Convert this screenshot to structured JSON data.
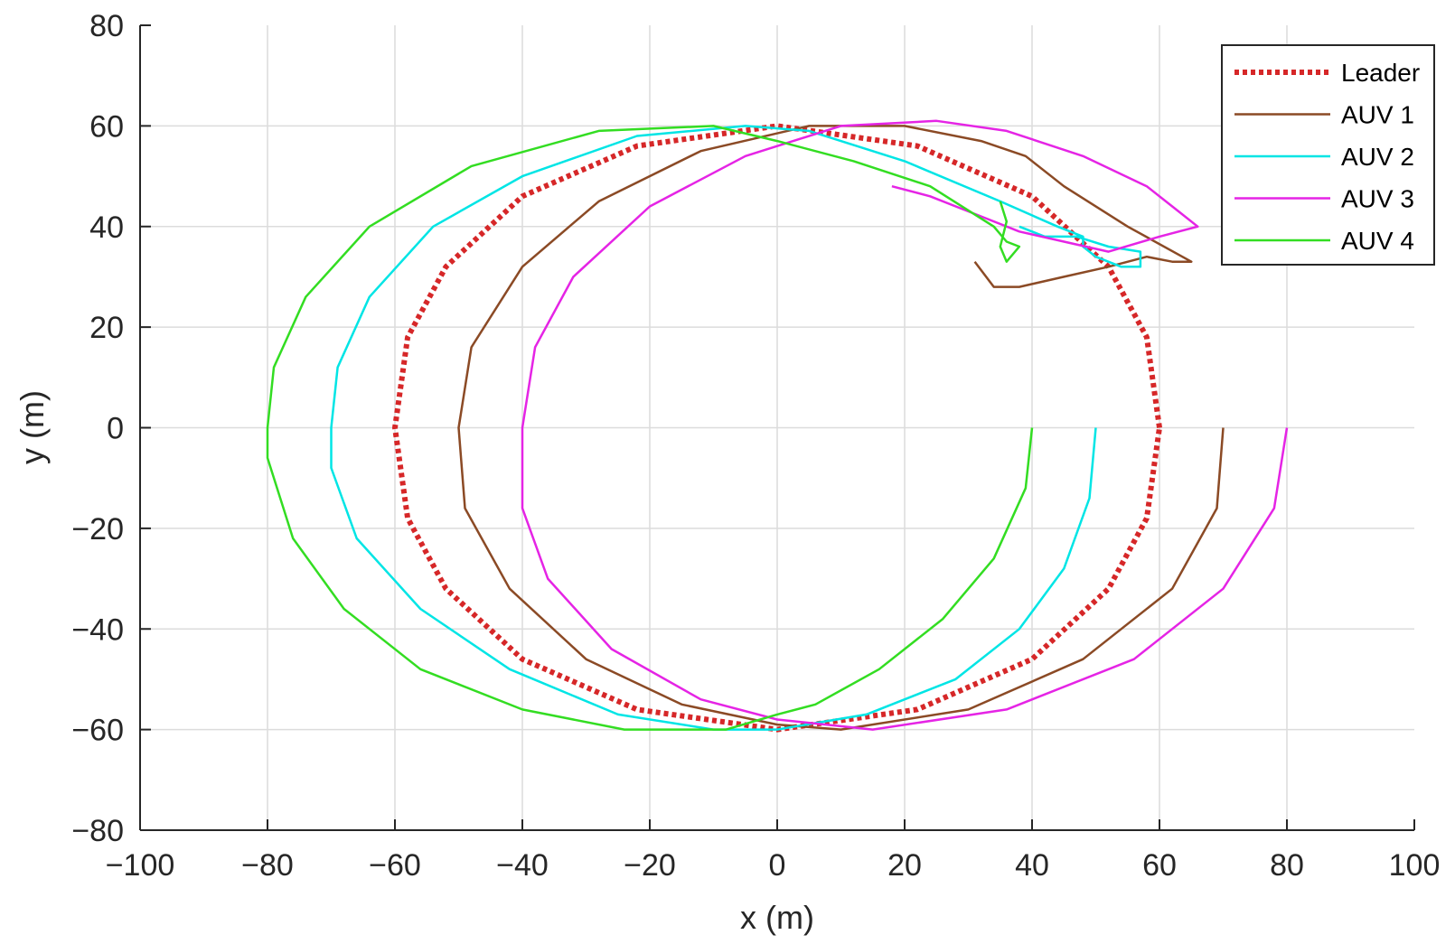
{
  "chart_data": {
    "type": "line",
    "title": "",
    "xlabel": "x (m)",
    "ylabel": "y (m)",
    "xlim": [
      -100,
      100
    ],
    "ylim": [
      -80,
      80
    ],
    "xticks": [
      -100,
      -80,
      -60,
      -40,
      -20,
      0,
      20,
      40,
      60,
      80,
      100
    ],
    "yticks": [
      -80,
      -60,
      -40,
      -20,
      0,
      20,
      40,
      60,
      80
    ],
    "xtick_labels": [
      "−100",
      "−80",
      "−60",
      "−40",
      "−20",
      "0",
      "20",
      "40",
      "60",
      "80",
      "100"
    ],
    "ytick_labels": [
      "−80",
      "−60",
      "−40",
      "−20",
      "0",
      "20",
      "40",
      "60",
      "80"
    ],
    "grid": true,
    "legend_position": "top-right",
    "series": [
      {
        "name": "Leader",
        "color": "#d62728",
        "style": "dotted",
        "points": [
          [
            60,
            0
          ],
          [
            58,
            18
          ],
          [
            52,
            32
          ],
          [
            40,
            46
          ],
          [
            22,
            56
          ],
          [
            0,
            60
          ],
          [
            -22,
            56
          ],
          [
            -40,
            46
          ],
          [
            -52,
            32
          ],
          [
            -58,
            18
          ],
          [
            -60,
            0
          ],
          [
            -58,
            -18
          ],
          [
            -52,
            -32
          ],
          [
            -40,
            -46
          ],
          [
            -22,
            -56
          ],
          [
            0,
            -60
          ],
          [
            22,
            -56
          ],
          [
            40,
            -46
          ],
          [
            52,
            -32
          ],
          [
            58,
            -18
          ],
          [
            60,
            0
          ]
        ]
      },
      {
        "name": "AUV 1",
        "color": "#8b4a25",
        "style": "solid",
        "points": [
          [
            70,
            0
          ],
          [
            69,
            -16
          ],
          [
            62,
            -32
          ],
          [
            48,
            -46
          ],
          [
            30,
            -56
          ],
          [
            10,
            -60
          ],
          [
            0,
            -59
          ],
          [
            -15,
            -55
          ],
          [
            -30,
            -46
          ],
          [
            -42,
            -32
          ],
          [
            -49,
            -16
          ],
          [
            -50,
            0
          ],
          [
            -48,
            16
          ],
          [
            -40,
            32
          ],
          [
            -28,
            45
          ],
          [
            -12,
            55
          ],
          [
            5,
            60
          ],
          [
            20,
            60
          ],
          [
            32,
            57
          ],
          [
            39,
            54
          ],
          [
            45,
            48
          ],
          [
            55,
            40
          ],
          [
            65,
            33
          ],
          [
            62,
            33
          ],
          [
            58,
            34
          ],
          [
            52,
            32
          ],
          [
            45,
            30
          ],
          [
            38,
            28
          ],
          [
            34,
            28
          ],
          [
            31,
            33
          ]
        ]
      },
      {
        "name": "AUV 2",
        "color": "#00e5e5",
        "style": "solid",
        "points": [
          [
            50,
            0
          ],
          [
            49,
            -14
          ],
          [
            45,
            -28
          ],
          [
            38,
            -40
          ],
          [
            28,
            -50
          ],
          [
            14,
            -57
          ],
          [
            0,
            -60
          ],
          [
            -10,
            -60
          ],
          [
            -25,
            -57
          ],
          [
            -42,
            -48
          ],
          [
            -56,
            -36
          ],
          [
            -66,
            -22
          ],
          [
            -70,
            -8
          ],
          [
            -70,
            0
          ],
          [
            -69,
            12
          ],
          [
            -64,
            26
          ],
          [
            -54,
            40
          ],
          [
            -40,
            50
          ],
          [
            -22,
            58
          ],
          [
            -5,
            60
          ],
          [
            5,
            59
          ],
          [
            20,
            53
          ],
          [
            35,
            45
          ],
          [
            44,
            40
          ],
          [
            48,
            38
          ],
          [
            48,
            36
          ],
          [
            50,
            34
          ],
          [
            54,
            32
          ],
          [
            57,
            32
          ],
          [
            57,
            35
          ],
          [
            52,
            36
          ],
          [
            47,
            38
          ],
          [
            42,
            38
          ],
          [
            38,
            40
          ]
        ]
      },
      {
        "name": "AUV 3",
        "color": "#e524e5",
        "style": "solid",
        "points": [
          [
            80,
            0
          ],
          [
            78,
            -16
          ],
          [
            70,
            -32
          ],
          [
            56,
            -46
          ],
          [
            36,
            -56
          ],
          [
            15,
            -60
          ],
          [
            0,
            -58
          ],
          [
            -12,
            -54
          ],
          [
            -26,
            -44
          ],
          [
            -36,
            -30
          ],
          [
            -40,
            -16
          ],
          [
            -40,
            0
          ],
          [
            -38,
            16
          ],
          [
            -32,
            30
          ],
          [
            -20,
            44
          ],
          [
            -5,
            54
          ],
          [
            10,
            60
          ],
          [
            25,
            61
          ],
          [
            36,
            59
          ],
          [
            48,
            54
          ],
          [
            58,
            48
          ],
          [
            63,
            43
          ],
          [
            66,
            40
          ],
          [
            60,
            38
          ],
          [
            52,
            35
          ],
          [
            45,
            37
          ],
          [
            38,
            39
          ],
          [
            30,
            43
          ],
          [
            24,
            46
          ],
          [
            18,
            48
          ]
        ]
      },
      {
        "name": "AUV 4",
        "color": "#33dd22",
        "style": "solid",
        "points": [
          [
            40,
            0
          ],
          [
            39,
            -12
          ],
          [
            34,
            -26
          ],
          [
            26,
            -38
          ],
          [
            16,
            -48
          ],
          [
            6,
            -55
          ],
          [
            0,
            -57
          ],
          [
            -8,
            -60
          ],
          [
            -24,
            -60
          ],
          [
            -40,
            -56
          ],
          [
            -56,
            -48
          ],
          [
            -68,
            -36
          ],
          [
            -76,
            -22
          ],
          [
            -80,
            -6
          ],
          [
            -80,
            0
          ],
          [
            -79,
            12
          ],
          [
            -74,
            26
          ],
          [
            -64,
            40
          ],
          [
            -48,
            52
          ],
          [
            -28,
            59
          ],
          [
            -10,
            60
          ],
          [
            0,
            57
          ],
          [
            12,
            53
          ],
          [
            24,
            48
          ],
          [
            34,
            40
          ],
          [
            36,
            37
          ],
          [
            38,
            36
          ],
          [
            36,
            33
          ],
          [
            35,
            36
          ],
          [
            36,
            41
          ],
          [
            35,
            45
          ]
        ]
      }
    ]
  }
}
